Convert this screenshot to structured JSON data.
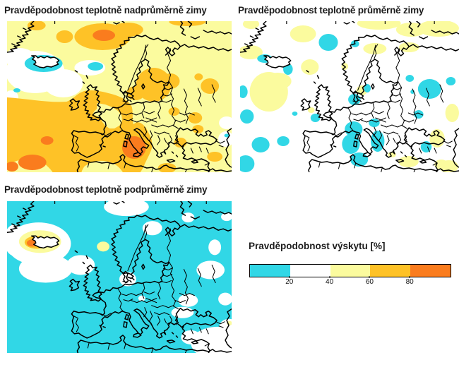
{
  "figure": {
    "background": "#ffffff",
    "panels": [
      {
        "id": "above-average",
        "title": "Pravděpodobnost teplotně nadprůměrně zimy"
      },
      {
        "id": "average",
        "title": "Pravděpodobnost teplotně průměrně zimy"
      },
      {
        "id": "below-average",
        "title": "Pravděpodobnost teplotně podprůměrně zimy"
      }
    ],
    "legend": {
      "title": "Pravděpodobnost výskytu [%]",
      "tick_labels": [
        "20",
        "40",
        "60",
        "80"
      ],
      "bins": [
        {
          "range_pct": "0-20",
          "color": "#31D7E6"
        },
        {
          "range_pct": "20-40",
          "color": "#FFFFFF"
        },
        {
          "range_pct": "40-60",
          "color": "#FBFB9E"
        },
        {
          "range_pct": "60-80",
          "color": "#FEC227"
        },
        {
          "range_pct": "80-100",
          "color": "#FA7C1E"
        }
      ]
    }
  },
  "chart_data": {
    "type": "heatmap",
    "variant": "filled-contour probability maps over Europe and the North Atlantic (3 panels + shared colorbar)",
    "colorbar": {
      "label": "Pravděpodobnost výskytu [%]",
      "tick_values": [
        20,
        40,
        60,
        80
      ],
      "bins": [
        {
          "range_pct": "0-20",
          "color": "#31D7E6"
        },
        {
          "range_pct": "20-40",
          "color": "#FFFFFF"
        },
        {
          "range_pct": "40-60",
          "color": "#FBFB9E"
        },
        {
          "range_pct": "60-80",
          "color": "#FEC227"
        },
        {
          "range_pct": "80-100",
          "color": "#FA7C1E"
        }
      ]
    },
    "panels": [
      {
        "title": "Pravděpodobnost teplotně nadprůměrně zimy",
        "dominant_bin_pct": "40-60",
        "features": [
          {
            "region": "SW Atlantic, Iberia, western Mediterranean, Italy, North Sea",
            "bin_pct": "60-80"
          },
          {
            "region": "Baltic / southern Scandinavia / Poland",
            "bin_pct": "60-80"
          },
          {
            "region": "southern Italy & Tyrrhenian Sea, SW corner, N Atlantic spot",
            "bin_pct": "80-100"
          },
          {
            "region": "sea around Iceland",
            "bin_pct": "0-20"
          },
          {
            "region": "Denmark Strait / south of Iceland, far east edge spots",
            "bin_pct": "20-40"
          }
        ]
      },
      {
        "title": "Pravděpodobnost teplotně průměrně zimy",
        "dominant_bin_pct": "20-40",
        "features": [
          {
            "region": "south of Iceland, Arctic fringe, NE Scandinavia, SE corner",
            "bin_pct": "40-60"
          },
          {
            "region": "Norwegian Sea, around Iceland, W Mediterranean, Adriatic/Ionian, NW Russia, SW Atlantic patches",
            "bin_pct": "0-20"
          }
        ]
      },
      {
        "title": "Pravděpodobnost teplotně podprůměrně zimy",
        "dominant_bin_pct": "0-20",
        "features": [
          {
            "region": "North Atlantic around/south of Iceland, N Scandinavia, NW Russia, Balkans-Turkey corner",
            "bin_pct": "20-40"
          },
          {
            "region": "ring around Iceland",
            "bin_pct": "40-60"
          },
          {
            "region": "immediately west of Iceland",
            "bin_pct": "60-80 with 80-100 core"
          }
        ]
      }
    ]
  }
}
